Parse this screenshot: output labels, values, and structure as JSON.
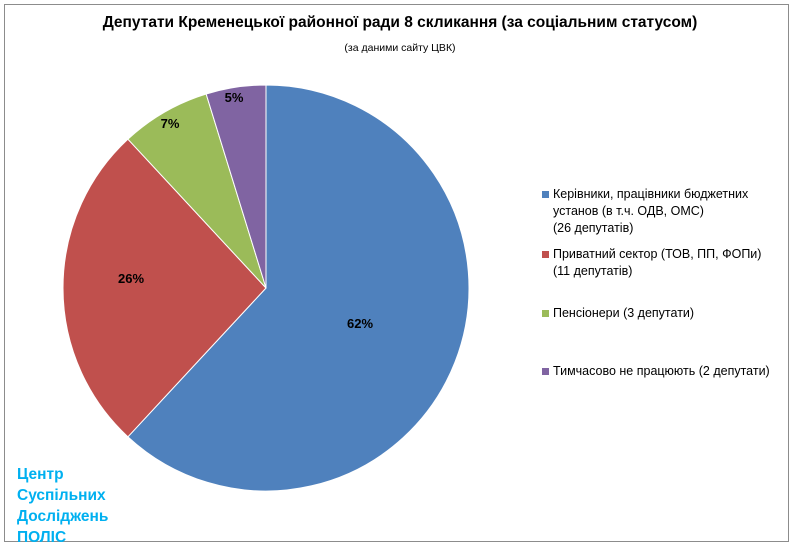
{
  "chart_data": {
    "type": "pie",
    "title": "Депутати Кременецької районної ради 8 скликання (за соціальним статусом)",
    "subtitle": "(за даними сайту ЦВК)",
    "slices": [
      {
        "label_line1": "Керівники, працівники бюджетних",
        "label_line2": "установ  (в т.ч. ОДВ, ОМС)",
        "label_line3": "(26 депутатів)",
        "count": 26,
        "percent_label": "62%",
        "color": "#4f81bd"
      },
      {
        "label_line1": "Приватний сектор (ТОВ, ПП, ФОПи)",
        "label_line2": "(11 депутатів)",
        "count": 11,
        "percent_label": "26%",
        "color": "#c0504d"
      },
      {
        "label_line1": "Пенсіонери (3 депутати)",
        "count": 3,
        "percent_label": "7%",
        "color": "#9bbb59"
      },
      {
        "label_line1": "Тимчасово не працюють (2 депутати)",
        "count": 2,
        "percent_label": "5%",
        "color": "#8064a2"
      }
    ],
    "legend_position": "right"
  },
  "watermark": {
    "line1": "Центр",
    "line2": "Суспільних",
    "line3": "Досліджень",
    "line4": "ПОЛІС",
    "color": "#00b0f0"
  }
}
